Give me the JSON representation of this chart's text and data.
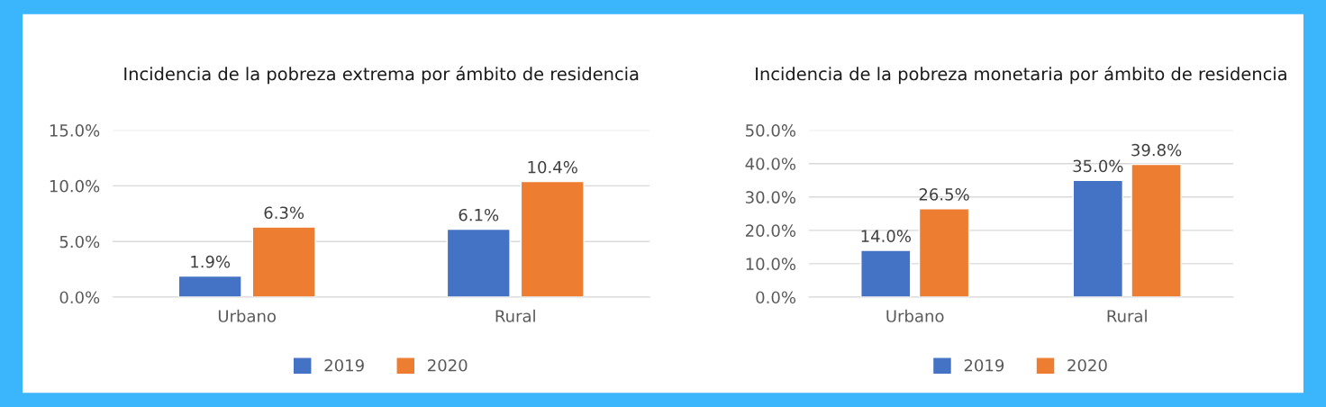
{
  "chart_data": [
    {
      "type": "bar",
      "title": "Incidencia de la pobreza extrema por ámbito de residencia",
      "categories": [
        "Urbano",
        "Rural"
      ],
      "series": [
        {
          "name": "2019",
          "color": "#4472c4",
          "values": [
            1.9,
            6.1
          ],
          "value_labels": [
            "1.9%",
            "6.1%"
          ]
        },
        {
          "name": "2020",
          "color": "#ed7d31",
          "values": [
            6.3,
            10.4
          ],
          "value_labels": [
            "6.3%",
            "10.4%"
          ]
        }
      ],
      "ylim": [
        0,
        15
      ],
      "yticks": [
        {
          "value": 0,
          "label": "0.0%"
        },
        {
          "value": 5,
          "label": "5.0%"
        },
        {
          "value": 10,
          "label": "10.0%"
        },
        {
          "value": 15,
          "label": "15.0%"
        }
      ],
      "grid": "y",
      "legend": "bottom"
    },
    {
      "type": "bar",
      "title": "Incidencia de la pobreza monetaria por ámbito de residencia",
      "categories": [
        "Urbano",
        "Rural"
      ],
      "series": [
        {
          "name": "2019",
          "color": "#4472c4",
          "values": [
            14.0,
            35.0
          ],
          "value_labels": [
            "14.0%",
            "35.0%"
          ]
        },
        {
          "name": "2020",
          "color": "#ed7d31",
          "values": [
            26.5,
            39.8
          ],
          "value_labels": [
            "26.5%",
            "39.8%"
          ]
        }
      ],
      "ylim": [
        0,
        50
      ],
      "yticks": [
        {
          "value": 0,
          "label": "0.0%"
        },
        {
          "value": 10,
          "label": "10.0%"
        },
        {
          "value": 20,
          "label": "20.0%"
        },
        {
          "value": 30,
          "label": "30.0%"
        },
        {
          "value": 40,
          "label": "40.0%"
        },
        {
          "value": 50,
          "label": "50.0%"
        }
      ],
      "grid": "y",
      "legend": "bottom"
    }
  ]
}
